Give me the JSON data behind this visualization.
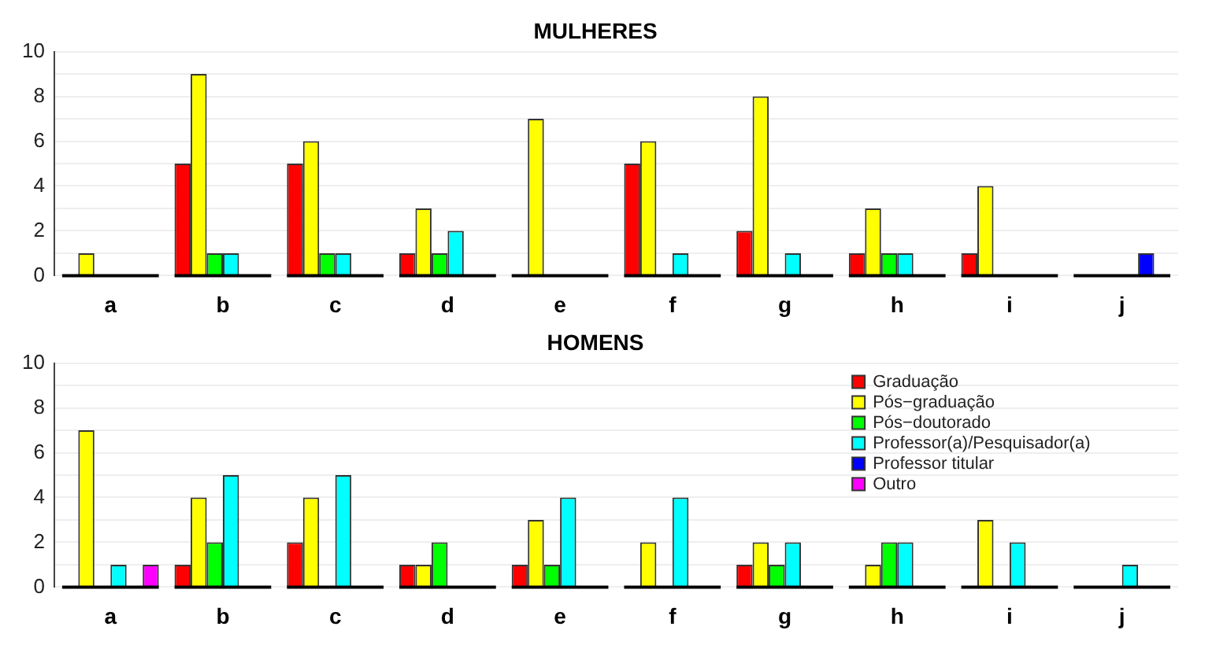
{
  "chart_data": [
    {
      "type": "bar",
      "title": "MULHERES",
      "categories": [
        "a",
        "b",
        "c",
        "d",
        "e",
        "f",
        "g",
        "h",
        "i",
        "j"
      ],
      "series": [
        {
          "color": "#ff0000",
          "values": [
            0,
            5,
            5,
            1,
            0,
            5,
            2,
            1,
            1,
            0
          ]
        },
        {
          "color": "#ffff00",
          "values": [
            1,
            9,
            6,
            3,
            7,
            6,
            8,
            3,
            4,
            0
          ]
        },
        {
          "color": "#00ff00",
          "values": [
            0,
            1,
            1,
            1,
            0,
            0,
            0,
            1,
            0,
            0
          ]
        },
        {
          "color": "#00ffff",
          "values": [
            0,
            1,
            1,
            2,
            0,
            1,
            1,
            1,
            0,
            0
          ]
        },
        {
          "color": "#0000ff",
          "values": [
            0,
            0,
            0,
            0,
            0,
            0,
            0,
            0,
            0,
            1
          ]
        },
        {
          "color": "#ff00ff",
          "values": [
            0,
            0,
            0,
            0,
            0,
            0,
            0,
            0,
            0,
            0
          ]
        }
      ],
      "ylim": [
        0,
        10
      ],
      "yticks": [
        0,
        {
          "value": 1,
          "label": null
        },
        2,
        {
          "value": 3,
          "label": null
        },
        4,
        {
          "value": 5,
          "label": null
        },
        6,
        {
          "value": 7,
          "label": null
        },
        8,
        {
          "value": 9,
          "label": null
        },
        10
      ],
      "grid": "y"
    },
    {
      "type": "bar",
      "title": "HOMENS",
      "categories": [
        "a",
        "b",
        "c",
        "d",
        "e",
        "f",
        "g",
        "h",
        "i",
        "j"
      ],
      "series": [
        {
          "name": "Graduação",
          "color": "#ff0000",
          "values": [
            0,
            1,
            2,
            1,
            1,
            0,
            1,
            0,
            0,
            0
          ]
        },
        {
          "name": "Pós−graduação",
          "color": "#ffff00",
          "values": [
            7,
            4,
            4,
            1,
            3,
            2,
            2,
            1,
            3,
            0
          ]
        },
        {
          "name": "Pós−doutorado",
          "color": "#00ff00",
          "values": [
            0,
            2,
            0,
            2,
            1,
            0,
            1,
            2,
            0,
            0
          ]
        },
        {
          "name": "Professor(a)/Pesquisador(a)",
          "color": "#00ffff",
          "values": [
            1,
            5,
            5,
            0,
            4,
            4,
            2,
            2,
            2,
            1
          ]
        },
        {
          "name": "Professor titular",
          "color": "#0000ff",
          "values": [
            0,
            0,
            0,
            0,
            0,
            0,
            0,
            0,
            0,
            0
          ]
        },
        {
          "name": "Outro",
          "color": "#ff00ff",
          "values": [
            1,
            0,
            0,
            0,
            0,
            0,
            0,
            0,
            0,
            0
          ]
        }
      ],
      "ylim": [
        0,
        10
      ],
      "yticks": [
        0,
        {
          "value": 1,
          "label": null
        },
        2,
        {
          "value": 3,
          "label": null
        },
        4,
        {
          "value": 5,
          "label": null
        },
        6,
        {
          "value": 7,
          "label": null
        },
        8,
        {
          "value": 9,
          "label": null
        },
        10
      ],
      "grid": "y",
      "legend": "top right"
    }
  ]
}
